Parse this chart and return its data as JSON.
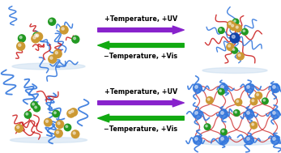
{
  "background_color": "#ffffff",
  "top_arrows": {
    "forward_text": "+Temperature, +UV",
    "backward_text": "−Temperature, +Vis",
    "forward_color": "#8822cc",
    "backward_color": "#11aa11"
  },
  "bottom_arrows": {
    "forward_text": "+Temperature, +UV",
    "backward_text": "−Temperature, +Vis",
    "forward_color": "#8822cc",
    "backward_color": "#11aa11"
  },
  "arrow_text_fontsize": 5.8,
  "text_fontweight": "bold",
  "fig_width": 3.47,
  "fig_height": 1.89,
  "dpi": 100
}
